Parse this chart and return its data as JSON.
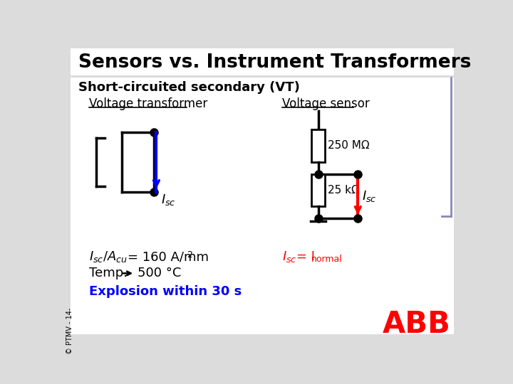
{
  "title": "Sensors vs. Instrument Transformers",
  "subtitle": "Short-circuited secondary (VT)",
  "bg_color": "#DCDCDC",
  "white_color": "#FFFFFF",
  "blue_color": "#0000FF",
  "red_color": "#FF0000",
  "black_color": "#000000",
  "purple_color": "#8888BB",
  "left_label": "Voltage transformer",
  "right_label": "Voltage sensor",
  "res1_label": "250 MΩ",
  "res2_label": "25 kΩ",
  "ann1": "= 160 A/mm",
  "ann2": "500 °C",
  "ann3": "Explosion within 30 s",
  "ann4_eq": " = I",
  "ann4_sub": "normal",
  "slide_id": "© PTMV - 14-"
}
